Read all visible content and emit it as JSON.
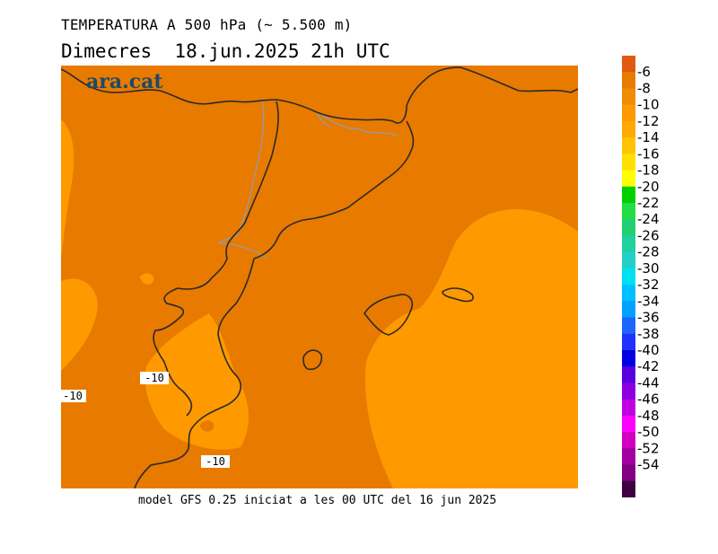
{
  "header": {
    "title": "TEMPERATURA A 500 hPa (~ 5.500 m)",
    "subtitle": "Dimecres  18.jun.2025 21h UTC"
  },
  "map": {
    "brand": "ara.cat",
    "brand_color": "#1a4a6b",
    "background_color": "#e87a00",
    "warm_region_color": "#ff9900",
    "coastline_color": "#2a2a2a",
    "border_color": "#9a9a9a",
    "contour_labels": [
      "-10",
      "-10",
      "-10"
    ]
  },
  "footer": {
    "text": "model GFS 0.25 iniciat a les 00 UTC del 16 jun 2025"
  },
  "legend": {
    "labels": [
      "-6",
      "-8",
      "-10",
      "-12",
      "-14",
      "-16",
      "-18",
      "-20",
      "-22",
      "-24",
      "-26",
      "-28",
      "-30",
      "-32",
      "-34",
      "-36",
      "-38",
      "-40",
      "-42",
      "-44",
      "-46",
      "-48",
      "-50",
      "-52",
      "-54"
    ],
    "colors": [
      "#e05a10",
      "#e87a00",
      "#f08c00",
      "#ff9900",
      "#ffaa00",
      "#ffc400",
      "#ffe000",
      "#ffff00",
      "#00d000",
      "#22dd44",
      "#22d070",
      "#22d0a0",
      "#22d0c8",
      "#00e0f0",
      "#00c0ff",
      "#00a0ff",
      "#1e64ff",
      "#1e32ff",
      "#0000e0",
      "#5a00e0",
      "#8c00e0",
      "#c000e0",
      "#ff00ff",
      "#d000c0",
      "#a000a0",
      "#800080",
      "#400040"
    ]
  }
}
